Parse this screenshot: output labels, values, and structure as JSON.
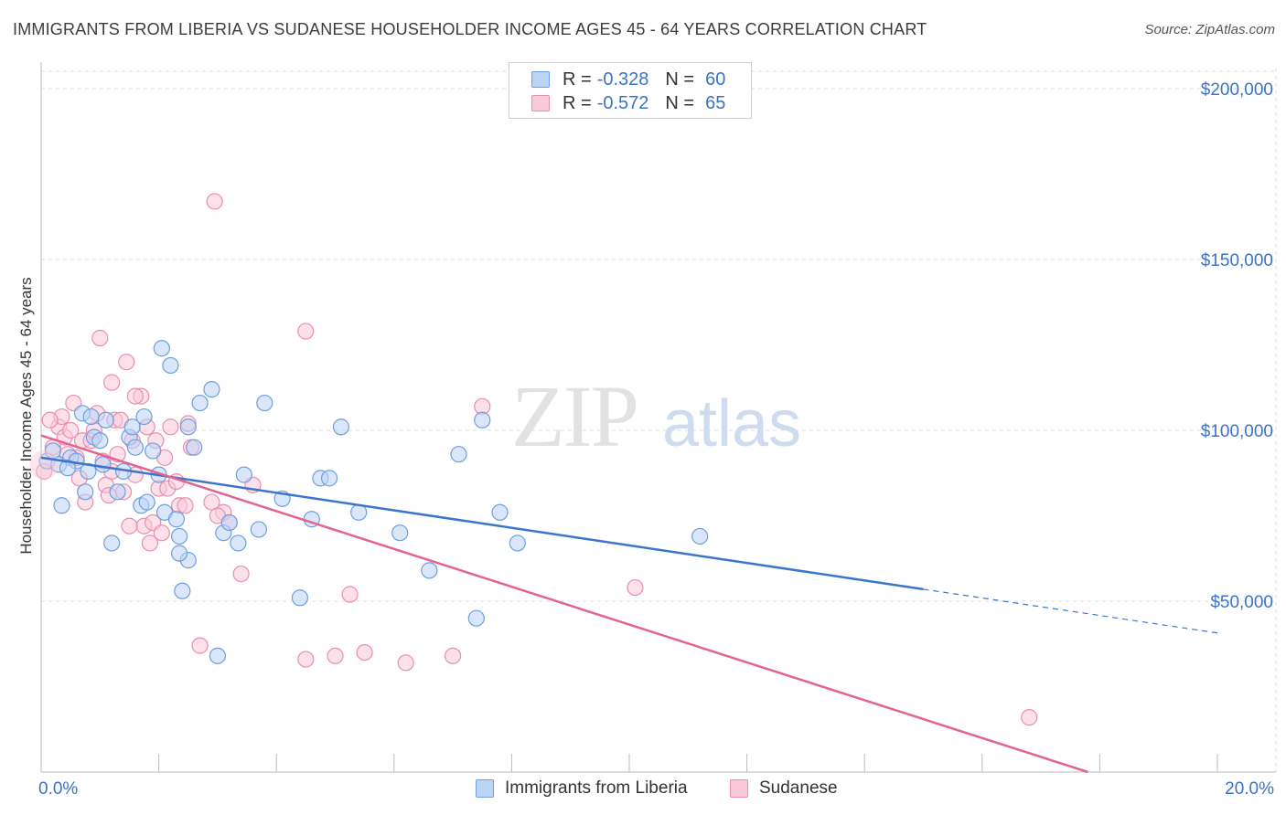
{
  "title": "IMMIGRANTS FROM LIBERIA VS SUDANESE HOUSEHOLDER INCOME AGES 45 - 64 YEARS CORRELATION CHART",
  "source": "Source: ZipAtlas.com",
  "watermark": {
    "zip": "ZIP",
    "atlas": "atlas"
  },
  "legend": {
    "rows": [
      {
        "r_label": "R =",
        "r_value": "-0.328",
        "n_label": "N =",
        "n_value": "60"
      },
      {
        "r_label": "R =",
        "r_value": "-0.572",
        "n_label": "N =",
        "n_value": "65"
      }
    ]
  },
  "bottom_legend": [
    "Immigrants from Liberia",
    "Sudanese"
  ],
  "colors": {
    "liberia_fill": "#bcd4f5",
    "liberia_stroke": "#6f9fde",
    "liberia_line": "#3a76cc",
    "sudanese_fill": "#f9c9d8",
    "sudanese_stroke": "#e98fae",
    "sudanese_line": "#e26394",
    "axis_label": "#3b73c8",
    "grid": "#dddddd"
  },
  "chart_data": {
    "type": "scatter",
    "title": "IMMIGRANTS FROM LIBERIA VS SUDANESE HOUSEHOLDER INCOME AGES 45 - 64 YEARS CORRELATION CHART",
    "xlabel": "",
    "ylabel": "Householder Income Ages 45 - 64 years",
    "xlim": [
      0,
      20
    ],
    "ylim": [
      0,
      205000
    ],
    "x_tick_labels": [
      "0.0%",
      "20.0%"
    ],
    "y_tick_labels": [
      "$50,000",
      "$100,000",
      "$150,000",
      "$200,000"
    ],
    "y_ticks": [
      50000,
      100000,
      150000,
      200000
    ],
    "grid": true,
    "legend_position": "top-center",
    "series": [
      {
        "name": "Immigrants from Liberia",
        "r": -0.328,
        "n": 60,
        "trend": {
          "x0": 0,
          "y0": 92000,
          "x1": 15.0,
          "y1": 53500,
          "dash_to_x": 20,
          "dash_to_y": 40700
        },
        "points": [
          [
            0.1,
            91
          ],
          [
            0.2,
            94
          ],
          [
            0.3,
            90
          ],
          [
            0.35,
            78
          ],
          [
            0.5,
            92
          ],
          [
            0.6,
            91
          ],
          [
            0.7,
            105
          ],
          [
            0.75,
            82
          ],
          [
            0.8,
            88
          ],
          [
            0.85,
            104
          ],
          [
            0.9,
            98
          ],
          [
            1.0,
            97
          ],
          [
            1.1,
            103
          ],
          [
            1.2,
            67
          ],
          [
            1.3,
            82
          ],
          [
            1.4,
            88
          ],
          [
            1.5,
            98
          ],
          [
            1.55,
            101
          ],
          [
            1.6,
            95
          ],
          [
            1.7,
            78
          ],
          [
            1.75,
            104
          ],
          [
            1.8,
            79
          ],
          [
            1.9,
            94
          ],
          [
            2.0,
            87
          ],
          [
            2.05,
            124
          ],
          [
            2.1,
            76
          ],
          [
            2.2,
            119
          ],
          [
            2.3,
            74
          ],
          [
            2.35,
            69
          ],
          [
            2.5,
            62
          ],
          [
            2.6,
            95
          ],
          [
            2.4,
            53
          ],
          [
            2.5,
            101
          ],
          [
            2.7,
            108
          ],
          [
            2.9,
            112
          ],
          [
            3.0,
            34
          ],
          [
            3.1,
            70
          ],
          [
            3.2,
            73
          ],
          [
            3.35,
            67
          ],
          [
            3.45,
            87
          ],
          [
            3.7,
            71
          ],
          [
            3.8,
            108
          ],
          [
            4.1,
            80
          ],
          [
            4.4,
            51
          ],
          [
            4.6,
            74
          ],
          [
            4.75,
            86
          ],
          [
            4.9,
            86
          ],
          [
            5.1,
            101
          ],
          [
            5.4,
            76
          ],
          [
            6.1,
            70
          ],
          [
            6.6,
            59
          ],
          [
            7.1,
            93
          ],
          [
            7.4,
            45
          ],
          [
            7.5,
            103
          ],
          [
            7.8,
            76
          ],
          [
            8.1,
            67
          ],
          [
            11.2,
            69
          ],
          [
            2.35,
            64
          ],
          [
            1.05,
            90
          ],
          [
            0.45,
            89
          ]
        ]
      },
      {
        "name": "Sudanese",
        "r": -0.572,
        "n": 65,
        "trend": {
          "x0": 0,
          "y0": 98500,
          "x1": 17.8,
          "y1": 0
        },
        "points": [
          [
            0.05,
            88
          ],
          [
            0.2,
            95
          ],
          [
            0.3,
            101
          ],
          [
            0.35,
            104
          ],
          [
            0.4,
            98
          ],
          [
            0.5,
            100
          ],
          [
            0.55,
            108
          ],
          [
            0.6,
            92
          ],
          [
            0.65,
            86
          ],
          [
            0.7,
            97
          ],
          [
            0.75,
            79
          ],
          [
            0.85,
            97
          ],
          [
            0.9,
            100
          ],
          [
            1.0,
            127
          ],
          [
            1.05,
            91
          ],
          [
            1.1,
            84
          ],
          [
            1.15,
            81
          ],
          [
            1.2,
            114
          ],
          [
            1.25,
            103
          ],
          [
            1.3,
            93
          ],
          [
            1.35,
            103
          ],
          [
            1.4,
            82
          ],
          [
            1.45,
            120
          ],
          [
            1.55,
            97
          ],
          [
            1.6,
            87
          ],
          [
            1.7,
            110
          ],
          [
            1.75,
            72
          ],
          [
            1.8,
            101
          ],
          [
            1.85,
            67
          ],
          [
            1.9,
            73
          ],
          [
            1.95,
            97
          ],
          [
            2.0,
            83
          ],
          [
            2.05,
            70
          ],
          [
            2.1,
            92
          ],
          [
            2.15,
            83
          ],
          [
            2.2,
            101
          ],
          [
            2.3,
            85
          ],
          [
            2.35,
            78
          ],
          [
            2.5,
            102
          ],
          [
            2.55,
            95
          ],
          [
            2.7,
            37
          ],
          [
            2.9,
            79
          ],
          [
            2.95,
            167
          ],
          [
            3.1,
            76
          ],
          [
            3.2,
            73
          ],
          [
            3.4,
            58
          ],
          [
            3.6,
            84
          ],
          [
            4.5,
            33
          ],
          [
            4.5,
            129
          ],
          [
            5.0,
            34
          ],
          [
            5.25,
            52
          ],
          [
            5.5,
            35
          ],
          [
            6.2,
            32
          ],
          [
            7.0,
            34
          ],
          [
            7.5,
            107
          ],
          [
            10.1,
            54
          ],
          [
            16.8,
            16
          ],
          [
            0.45,
            93
          ],
          [
            1.2,
            88
          ],
          [
            1.6,
            110
          ],
          [
            0.95,
            105
          ],
          [
            3.0,
            75
          ],
          [
            2.45,
            78
          ],
          [
            0.15,
            103
          ],
          [
            1.5,
            72
          ]
        ]
      }
    ]
  }
}
